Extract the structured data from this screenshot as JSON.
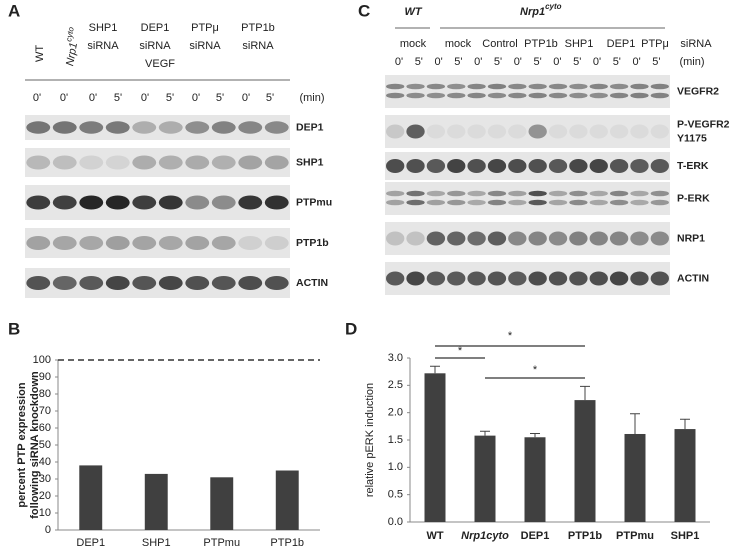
{
  "panel_a": {
    "label": "A",
    "genotype_headers": [
      "WT",
      {
        "base": "Nrp1",
        "sup": "cyto"
      }
    ],
    "sirna_headers": [
      [
        "SHP1",
        "siRNA"
      ],
      [
        "DEP1",
        "siRNA"
      ],
      [
        "PTPμ",
        "siRNA"
      ],
      [
        "PTP1b",
        "siRNA"
      ]
    ],
    "vegf": "VEGF",
    "times": [
      "0'",
      "0'",
      "0'",
      "5'",
      "0'",
      "5'",
      "0'",
      "5'",
      "0'",
      "5'"
    ],
    "unit": "(min)",
    "blots": [
      "DEP1",
      "SHP1",
      "PTPmu",
      "PTP1b",
      "ACTIN"
    ]
  },
  "panel_c": {
    "label": "C",
    "wt": "WT",
    "nrp1": {
      "base": "Nrp1",
      "sup": "cyto"
    },
    "columns": [
      "mock",
      "mock",
      "Control",
      "PTP1b",
      "SHP1",
      "DEP1",
      "PTPμ"
    ],
    "sirna": "siRNA",
    "times": [
      "0'",
      "5'",
      "0'",
      "5'",
      "0'",
      "5'",
      "0'",
      "5'",
      "0'",
      "5'",
      "0'",
      "5'",
      "0'",
      "5'"
    ],
    "unit": "(min)",
    "blots": [
      "VEGFR2",
      [
        "P-VEGFR2",
        "Y1175"
      ],
      "T-ERK",
      "P-ERK",
      "NRP1",
      "ACTIN"
    ]
  },
  "chart_data": [
    {
      "type": "bar",
      "panel": "B",
      "ylabel": [
        "percent PTP expression",
        "following siRNA knockdown"
      ],
      "categories": [
        "DEP1",
        "SHP1",
        "PTPmu",
        "PTP1b"
      ],
      "values": [
        38,
        33,
        31,
        35
      ],
      "color": "#404040",
      "ylim": [
        0,
        100
      ],
      "yticks": [
        0,
        10,
        20,
        30,
        40,
        50,
        60,
        70,
        80,
        90,
        100
      ],
      "reference_line": 100
    },
    {
      "type": "bar",
      "panel": "D",
      "ylabel": "relative pERK induction",
      "categories": [
        "WT",
        "Nrp1cyto",
        "DEP1",
        "PTP1b",
        "PTPmu",
        "SHP1"
      ],
      "values": [
        2.72,
        1.58,
        1.55,
        2.23,
        1.61,
        1.7
      ],
      "errors": [
        0.13,
        0.08,
        0.07,
        0.25,
        0.37,
        0.18
      ],
      "color": "#404040",
      "ylim": [
        0,
        3
      ],
      "yticks": [
        {
          "value": 0,
          "label": "0.0"
        },
        0.5,
        {
          "value": 1,
          "label": "1.0"
        },
        1.5,
        {
          "value": 2,
          "label": "2.0"
        },
        2.5,
        {
          "value": 3,
          "label": "3.0"
        }
      ],
      "significance": [
        "*",
        "*",
        "*"
      ]
    }
  ]
}
